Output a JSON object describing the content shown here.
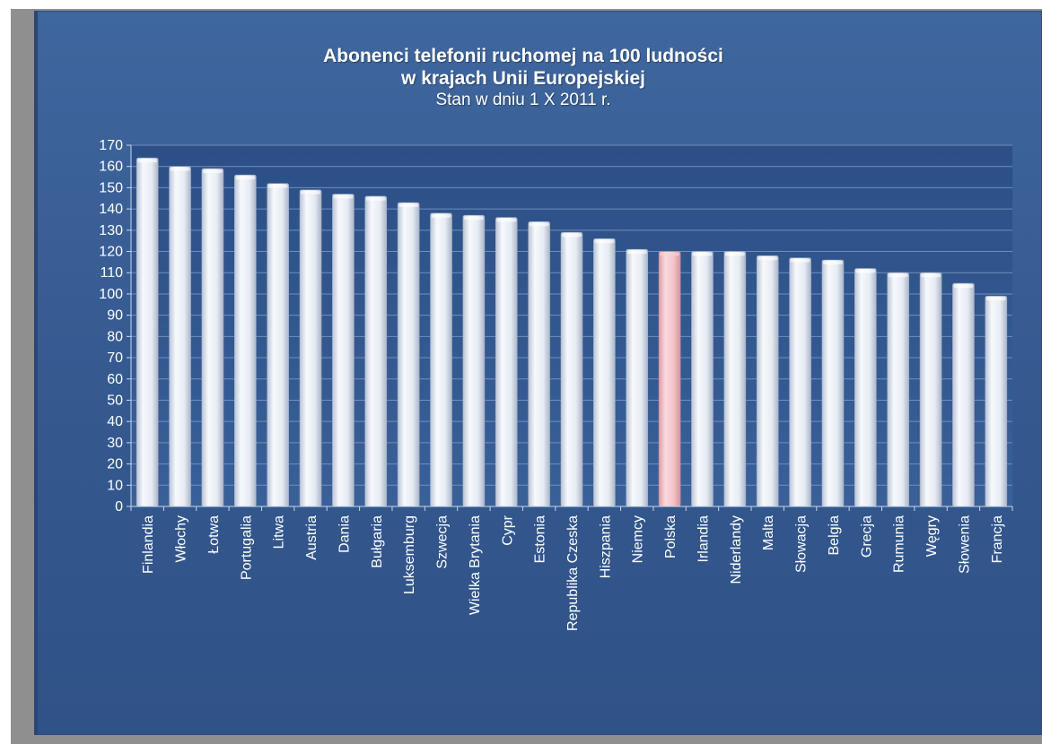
{
  "chart_data": {
    "type": "bar",
    "title_lines": [
      "Abonenci telefonii ruchomej na 100 ludności",
      "w krajach Unii Europejskiej"
    ],
    "subtitle": "Stan w dniu 1 X 2011 r.",
    "categories": [
      "Finlandia",
      "Włochy",
      "Łotwa",
      "Portugalia",
      "Litwa",
      "Austria",
      "Dania",
      "Bułgaria",
      "Luksemburg",
      "Szwecja",
      "Wielka Brytania",
      "Cypr",
      "Estonia",
      "Republika Czeska",
      "Hiszpania",
      "Niemcy",
      "Polska",
      "Irlandia",
      "Niderlandy",
      "Malta",
      "Słowacja",
      "Belgia",
      "Grecja",
      "Rumunia",
      "Węgry",
      "Słowenia",
      "Francja"
    ],
    "values": [
      164,
      160,
      159,
      156,
      152,
      149,
      147,
      146,
      143,
      138,
      137,
      136,
      134,
      129,
      126,
      121,
      120,
      120,
      120,
      118,
      117,
      116,
      112,
      110,
      110,
      105,
      99
    ],
    "highlight_category": "Polska",
    "ylim": [
      0,
      170
    ],
    "ytick_step": 10,
    "grid": true,
    "legend": "none",
    "colors": {
      "bar": "#e2e8f2",
      "bar_highlight": "#f0c0c4",
      "background": "#3a5f97",
      "text": "#ffffff"
    }
  }
}
